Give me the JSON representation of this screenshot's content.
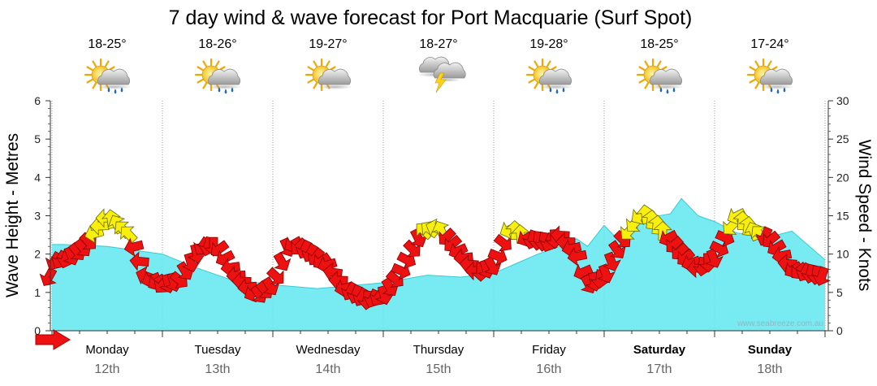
{
  "chart_data": {
    "type": "area",
    "title": "7 day wind & wave forecast for Port Macquarie (Surf Spot)",
    "ylabel_left": "Wave Height - Metres",
    "ylabel_right": "Wind Speed - Knots",
    "ylim_left": [
      0,
      6
    ],
    "ylim_right": [
      0,
      30
    ],
    "left_ticks": [
      "0",
      "1",
      "2",
      "3",
      "4",
      "5",
      "6"
    ],
    "right_ticks": [
      "0",
      "5",
      "10",
      "15",
      "20",
      "25",
      "30"
    ],
    "watermark": "www.seabreeze.com.au",
    "legend_arrow_icon": "wind-direction-arrow-icon",
    "days": [
      {
        "day": "Monday",
        "date": "12th",
        "temp": "18-25°",
        "icon": "sun-cloud-rain-icon",
        "bold": false
      },
      {
        "day": "Tuesday",
        "date": "13th",
        "temp": "18-26°",
        "icon": "sun-cloud-rain-icon",
        "bold": false
      },
      {
        "day": "Wednesday",
        "date": "14th",
        "temp": "19-27°",
        "icon": "sun-cloud-icon",
        "bold": false
      },
      {
        "day": "Thursday",
        "date": "15th",
        "temp": "18-27°",
        "icon": "storm-cloud-lightning-icon",
        "bold": false
      },
      {
        "day": "Friday",
        "date": "16th",
        "temp": "19-28°",
        "icon": "sun-cloud-rain-icon",
        "bold": false
      },
      {
        "day": "Saturday",
        "date": "17th",
        "temp": "18-25°",
        "icon": "sun-cloud-rain-icon",
        "bold": true
      },
      {
        "day": "Sunday",
        "date": "18th",
        "temp": "17-24°",
        "icon": "sun-cloud-rain-icon",
        "bold": true
      }
    ],
    "wave_height_series": {
      "name": "Wave Height",
      "color": "#5fe8ee",
      "x_day": [
        0.0,
        0.1,
        0.5,
        1.0,
        1.3,
        1.6,
        2.0,
        2.4,
        2.6,
        3.0,
        3.4,
        3.7,
        4.0,
        4.2,
        4.4,
        4.6,
        4.75,
        4.85,
        5.0,
        5.15,
        5.3,
        5.6,
        5.7,
        5.85,
        6.0,
        6.2,
        6.5,
        6.7,
        7.0
      ],
      "values": [
        2.25,
        2.25,
        2.2,
        2.0,
        1.65,
        1.35,
        1.2,
        1.1,
        1.15,
        1.25,
        1.45,
        1.4,
        1.5,
        1.75,
        2.0,
        2.2,
        2.4,
        2.2,
        2.75,
        2.3,
        2.9,
        3.05,
        3.45,
        3.0,
        2.85,
        2.55,
        2.45,
        2.6,
        1.85
      ]
    },
    "wind_speed_series": {
      "name": "Wind Speed",
      "x_day": [
        0.0,
        0.15,
        0.3,
        0.5,
        0.7,
        0.85,
        1.0,
        1.15,
        1.35,
        1.5,
        1.65,
        1.85,
        2.0,
        2.15,
        2.3,
        2.5,
        2.65,
        2.85,
        3.0,
        3.15,
        3.35,
        3.5,
        3.7,
        3.85,
        4.0,
        4.15,
        4.3,
        4.5,
        4.6,
        4.75,
        4.85,
        5.0,
        5.15,
        5.35,
        5.5,
        5.7,
        5.85,
        6.0,
        6.2,
        6.35,
        6.5,
        6.7,
        6.85,
        7.0
      ],
      "values": [
        9.0,
        9.5,
        11.0,
        15.0,
        12.5,
        7.0,
        6.0,
        6.5,
        11.0,
        11.0,
        7.5,
        4.5,
        6.0,
        11.5,
        10.5,
        8.5,
        5.5,
        4.0,
        4.5,
        7.5,
        13.0,
        13.5,
        10.0,
        7.5,
        8.5,
        13.5,
        12.0,
        11.5,
        12.5,
        10.0,
        6.0,
        7.0,
        11.5,
        15.5,
        13.5,
        10.0,
        8.0,
        9.5,
        15.0,
        13.0,
        12.0,
        8.0,
        7.5,
        7.0
      ]
    }
  }
}
